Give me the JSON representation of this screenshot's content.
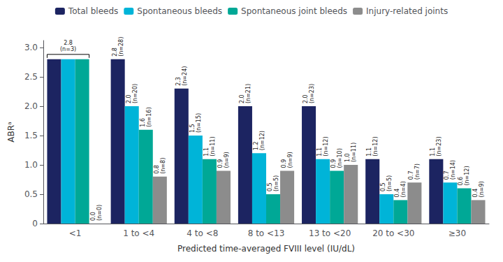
{
  "chart_data": {
    "type": "bar",
    "categories": [
      "<1",
      "1 to <4",
      "4 to <8",
      "8 to <13",
      "13 to <20",
      "20 to <30",
      "≥30"
    ],
    "series": [
      {
        "name": "Total bleeds",
        "color": "#1c2461",
        "values": [
          2.8,
          2.8,
          2.3,
          2.0,
          2.0,
          1.1,
          1.1
        ],
        "value_labels": [
          null,
          "2.8\n(n=28)",
          "2.3\n(n=24)",
          "2.0\n(n=21)",
          "2.0\n(n=23)",
          "1.1\n(n=12)",
          "1.1\n(n=23)"
        ]
      },
      {
        "name": "Spontaneous bleeds",
        "color": "#00b4d8",
        "values": [
          2.8,
          2.0,
          1.5,
          1.2,
          1.1,
          0.5,
          0.7
        ],
        "value_labels": [
          null,
          "2.0\n(n=20)",
          "1.5\n(n=15)",
          "1.2\n(n=12)",
          "1.1\n(n=12)",
          "0.5\n(n=5)",
          "0.7\n(n=14)"
        ]
      },
      {
        "name": "Spontaneous joint bleeds",
        "color": "#00a896",
        "values": [
          2.8,
          1.6,
          1.1,
          0.5,
          0.9,
          0.4,
          0.6
        ],
        "value_labels": [
          null,
          "1.6\n(n=16)",
          "1.1\n(n=11)",
          "0.5\n(n=5)",
          "0.9\n(n=10)",
          "0.4\n(n=4)",
          "0.6\n(n=12)"
        ]
      },
      {
        "name": "Injury-related joints",
        "color": "#8c8c8c",
        "values": [
          0.0,
          0.8,
          0.9,
          0.9,
          1.0,
          0.7,
          0.4
        ],
        "value_labels": [
          "0.0\n(n=0)",
          "0.8\n(n=8)",
          "0.9\n(n=9)",
          "0.9\n(n=9)",
          "1.0\n(n=11)",
          "0.7\n(n=7)",
          "0.4\n(n=9)"
        ]
      }
    ],
    "xlabel": "Predicted time-averaged FVIII level (IU/dL)",
    "ylabel": "ABRᵃ",
    "ylim": [
      0,
      3.12
    ],
    "yticks": [
      0,
      0.5,
      {
        "value": 1.0,
        "label": "1.0"
      },
      1.5,
      {
        "value": 2.0,
        "label": "2.0"
      },
      2.5,
      {
        "value": 3.0,
        "label": "3.0"
      }
    ],
    "grid": false,
    "legend": "top",
    "data_labels": true,
    "annotations": [
      {
        "text": "2.8\n(n=3)",
        "category": "<1",
        "series": [
          "Total bleeds",
          "Spontaneous bleeds",
          "Spontaneous joint bleeds"
        ],
        "y": 2.8
      }
    ]
  }
}
